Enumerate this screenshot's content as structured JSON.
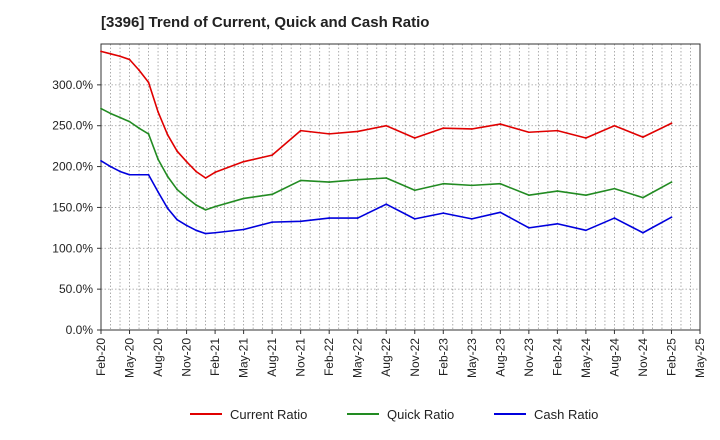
{
  "chart_data": {
    "type": "line",
    "title": "[3396]  Trend of Current, Quick and Cash Ratio",
    "xlabel": "",
    "ylabel": "",
    "ylim": [
      0,
      350
    ],
    "y_ticks": [
      0,
      50,
      100,
      150,
      200,
      250,
      300
    ],
    "y_tick_labels": [
      "0.0%",
      "50.0%",
      "100.0%",
      "150.0%",
      "200.0%",
      "250.0%",
      "300.0%"
    ],
    "x_tick_labels": [
      "Feb-20",
      "May-20",
      "Aug-20",
      "Nov-20",
      "Feb-21",
      "May-21",
      "Aug-21",
      "Nov-21",
      "Feb-22",
      "May-22",
      "Aug-22",
      "Nov-22",
      "Feb-23",
      "May-23",
      "Aug-23",
      "Nov-23",
      "Feb-24",
      "May-24",
      "Aug-24",
      "Nov-24",
      "Feb-25",
      "May-25"
    ],
    "x_range_months": [
      0,
      63
    ],
    "grid": true,
    "legend_position": "bottom",
    "series": [
      {
        "name": "Current Ratio",
        "color": "#e00000",
        "x": [
          0,
          1,
          2,
          3,
          4,
          5,
          6,
          7,
          8,
          9,
          10,
          11,
          12,
          15,
          18,
          21,
          24,
          27,
          30,
          33,
          36,
          39,
          42,
          45,
          48,
          51,
          54,
          57,
          60
        ],
        "values": [
          341,
          338,
          335,
          331,
          318,
          303,
          267,
          239,
          219,
          206,
          194,
          186,
          193,
          206,
          214,
          244,
          240,
          243,
          250,
          235,
          247,
          246,
          252,
          242,
          244,
          235,
          250,
          236,
          253
        ]
      },
      {
        "name": "Quick Ratio",
        "color": "#228b22",
        "x": [
          0,
          1,
          2,
          3,
          4,
          5,
          6,
          7,
          8,
          9,
          10,
          11,
          12,
          15,
          18,
          21,
          24,
          27,
          30,
          33,
          36,
          39,
          42,
          45,
          48,
          51,
          54,
          57,
          60
        ],
        "values": [
          271,
          265,
          260,
          255,
          247,
          240,
          209,
          188,
          172,
          162,
          153,
          147,
          151,
          161,
          166,
          183,
          181,
          184,
          186,
          171,
          179,
          177,
          179,
          165,
          170,
          165,
          173,
          162,
          181
        ]
      },
      {
        "name": "Cash Ratio",
        "color": "#0000dd",
        "x": [
          0,
          1,
          2,
          3,
          4,
          5,
          6,
          7,
          8,
          9,
          10,
          11,
          12,
          15,
          18,
          21,
          24,
          27,
          30,
          33,
          36,
          39,
          42,
          45,
          48,
          51,
          54,
          57,
          60
        ],
        "values": [
          207,
          200,
          194,
          190,
          190,
          190,
          169,
          149,
          135,
          128,
          122,
          118,
          119,
          123,
          132,
          133,
          137,
          137,
          154,
          136,
          143,
          136,
          144,
          125,
          130,
          122,
          137,
          119,
          138
        ]
      }
    ]
  }
}
